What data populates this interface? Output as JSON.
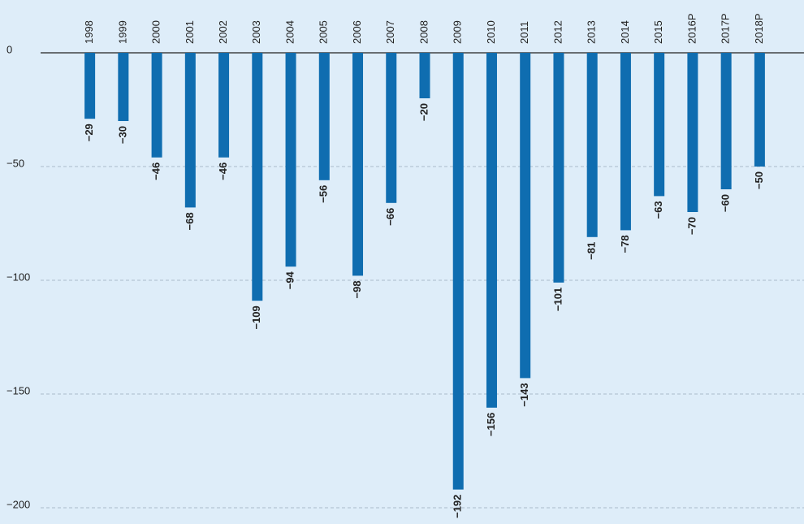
{
  "chart_data": {
    "type": "bar",
    "categories": [
      "1998",
      "1999",
      "2000",
      "2001",
      "2002",
      "2003",
      "2004",
      "2005",
      "2006",
      "2007",
      "2008",
      "2009",
      "2010",
      "2011",
      "2012",
      "2013",
      "2014",
      "2015",
      "2016P",
      "2017P",
      "2018P"
    ],
    "values": [
      -29,
      -30,
      -46,
      -68,
      -46,
      -109,
      -94,
      -56,
      -98,
      -66,
      -20,
      -192,
      -156,
      -143,
      -101,
      -81,
      -78,
      -63,
      -70,
      -60,
      -50
    ],
    "value_labels": [
      "−29",
      "−30",
      "−46",
      "−68",
      "−46",
      "−109",
      "−94",
      "−56",
      "−98",
      "−66",
      "−20",
      "−192",
      "−156",
      "−143",
      "−101",
      "−81",
      "−78",
      "−63",
      "−70",
      "−60",
      "−50"
    ],
    "color": "#0f6db0",
    "ylim": [
      -200,
      0
    ],
    "yticks": [
      0,
      {
        "value": -50,
        "label": "−50"
      },
      {
        "value": -100,
        "label": "−100"
      },
      {
        "value": -150,
        "label": "−150"
      },
      {
        "value": -200,
        "label": "−200"
      }
    ],
    "grid": true
  }
}
